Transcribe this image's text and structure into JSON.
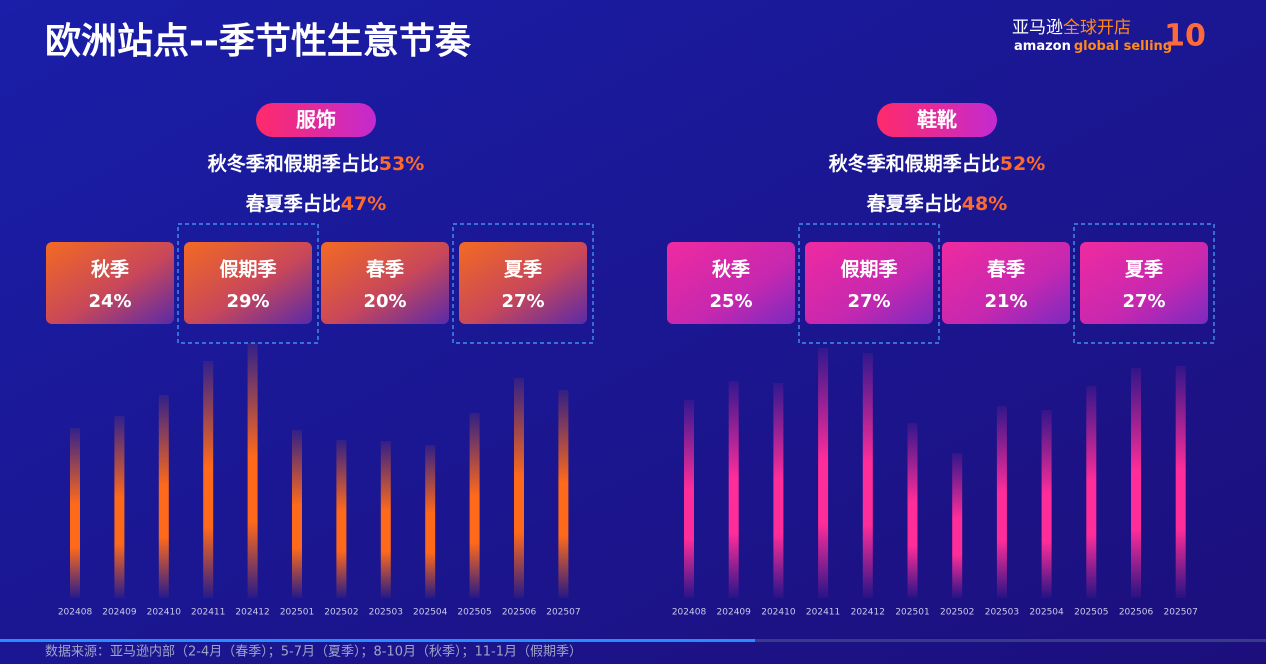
{
  "title": "欧洲站点--季节性生意节奏",
  "logo": {
    "cn_main": "亚马逊",
    "cn_accent": "全球开店",
    "en_main": "amazon",
    "en_accent": "global selling",
    "badge": "10"
  },
  "footer": "数据来源：亚马逊内部（2-4月（春季）；5-7月（夏季）；8-10月（秋季）；11-1月（假期季）",
  "chart_data": [
    {
      "type": "bar",
      "title": "服饰",
      "color": "#ff6a1a",
      "notes": [
        {
          "text": "秋冬季和假期季占比",
          "value": 53,
          "label": "53%"
        },
        {
          "text": "春夏季占比",
          "value": 47,
          "label": "47%"
        }
      ],
      "seasons": [
        {
          "name": "秋季",
          "value": 24,
          "label": "24%",
          "highlight": false
        },
        {
          "name": "假期季",
          "value": 29,
          "label": "29%",
          "highlight": true
        },
        {
          "name": "春季",
          "value": 20,
          "label": "20%",
          "highlight": false
        },
        {
          "name": "夏季",
          "value": 27,
          "label": "27%",
          "highlight": true
        }
      ],
      "categories": [
        "202408",
        "202409",
        "202410",
        "202411",
        "202412",
        "202501",
        "202502",
        "202503",
        "202504",
        "202505",
        "202506",
        "202507"
      ],
      "values": [
        170,
        182,
        203,
        237,
        255,
        168,
        158,
        157,
        153,
        185,
        220,
        208
      ],
      "ylim": [
        0,
        260
      ]
    },
    {
      "type": "bar",
      "title": "鞋靴",
      "color": "#ff2d9a",
      "notes": [
        {
          "text": "秋冬季和假期季占比",
          "value": 52,
          "label": "52%"
        },
        {
          "text": "春夏季占比",
          "value": 48,
          "label": "48%"
        }
      ],
      "seasons": [
        {
          "name": "秋季",
          "value": 25,
          "label": "25%",
          "highlight": false
        },
        {
          "name": "假期季",
          "value": 27,
          "label": "27%",
          "highlight": true
        },
        {
          "name": "春季",
          "value": 21,
          "label": "21%",
          "highlight": false
        },
        {
          "name": "夏季",
          "value": 27,
          "label": "27%",
          "highlight": true
        }
      ],
      "categories": [
        "202408",
        "202409",
        "202410",
        "202411",
        "202412",
        "202501",
        "202502",
        "202503",
        "202504",
        "202505",
        "202506",
        "202507"
      ],
      "values": [
        198,
        217,
        215,
        250,
        245,
        175,
        145,
        192,
        188,
        212,
        230,
        232
      ],
      "ylim": [
        0,
        260
      ]
    }
  ]
}
